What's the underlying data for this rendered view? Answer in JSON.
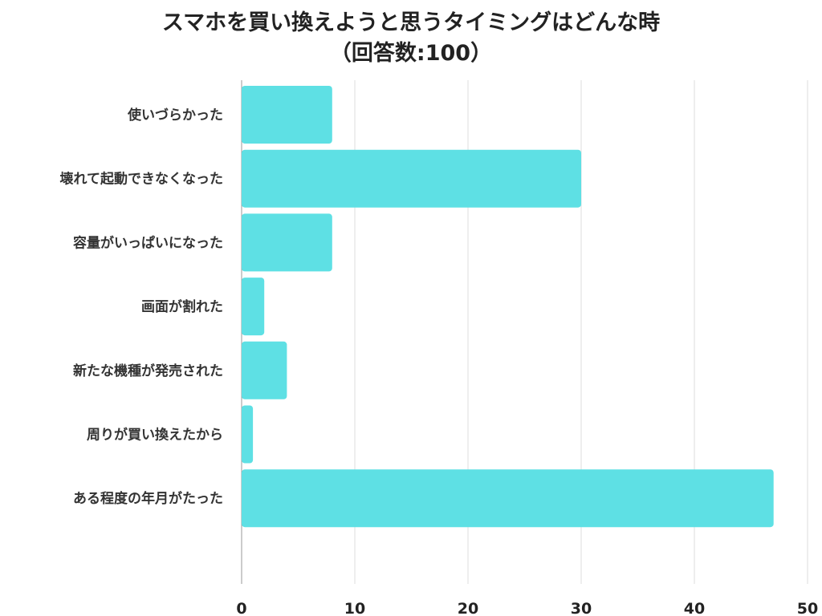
{
  "chart_data": {
    "type": "bar",
    "orientation": "horizontal",
    "title": "スマホを買い換えようと思うタイミングはどんな時",
    "subtitle": "（回答数:100）",
    "categories": [
      "使いづらかった",
      "壊れて起動できなくなった",
      "容量がいっぱいになった",
      "画面が割れた",
      "新たな機種が発売された",
      "周りが買い換えたから",
      "ある程度の年月がたった"
    ],
    "values": [
      8,
      30,
      8,
      2,
      4,
      1,
      47
    ],
    "xlim": [
      0,
      50
    ],
    "xticks": [
      "0",
      "10",
      "20",
      "30",
      "40",
      "50"
    ],
    "grid": true,
    "bar_color": "#5ee0e4"
  }
}
